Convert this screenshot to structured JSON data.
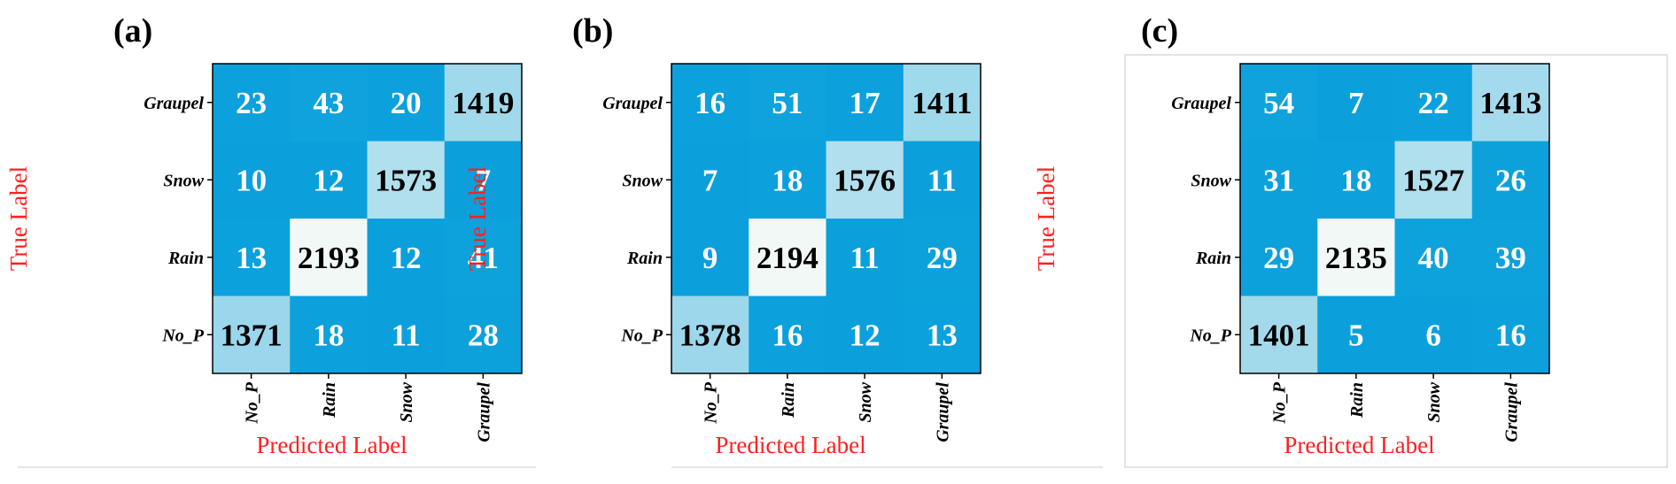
{
  "chart_data": [
    {
      "type": "heatmap",
      "panel_label": "(a)",
      "ylabel": "True Label",
      "xlabel": "Predicted Label",
      "rows": [
        "Graupel",
        "Snow",
        "Rain",
        "No_P"
      ],
      "columns": [
        "No_P",
        "Rain",
        "Snow",
        "Graupel"
      ],
      "values": [
        [
          23,
          43,
          20,
          1419
        ],
        [
          10,
          12,
          1573,
          7
        ],
        [
          13,
          2193,
          12,
          41
        ],
        [
          1371,
          18,
          11,
          28
        ]
      ]
    },
    {
      "type": "heatmap",
      "panel_label": "(b)",
      "ylabel": "True Label",
      "xlabel": "Predicted Label",
      "rows": [
        "Graupel",
        "Snow",
        "Rain",
        "No_P"
      ],
      "columns": [
        "No_P",
        "Rain",
        "Snow",
        "Graupel"
      ],
      "values": [
        [
          16,
          51,
          17,
          1411
        ],
        [
          7,
          18,
          1576,
          11
        ],
        [
          9,
          2194,
          11,
          29
        ],
        [
          1378,
          16,
          12,
          13
        ]
      ]
    },
    {
      "type": "heatmap",
      "panel_label": "(c)",
      "ylabel": "True Label",
      "xlabel": "Predicted Label",
      "rows": [
        "Graupel",
        "Snow",
        "Rain",
        "No_P"
      ],
      "columns": [
        "No_P",
        "Rain",
        "Snow",
        "Graupel"
      ],
      "values": [
        [
          54,
          7,
          22,
          1413
        ],
        [
          31,
          18,
          1527,
          26
        ],
        [
          29,
          2135,
          40,
          39
        ],
        [
          1401,
          5,
          6,
          16
        ]
      ]
    }
  ],
  "colors": {
    "low": "#0aa0dc",
    "high": "#f2f8f5",
    "axis_label": "#ff1f1f",
    "light_text": "#ffffff",
    "dark_text": "#000000"
  }
}
